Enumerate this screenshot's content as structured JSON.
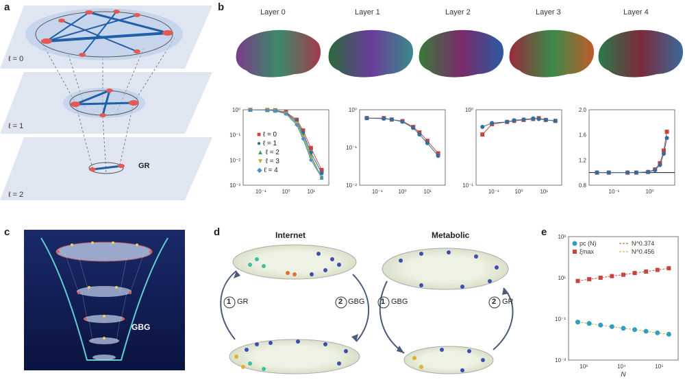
{
  "panel_labels": {
    "a": "a",
    "b": "b",
    "c": "c",
    "d": "d",
    "e": "e"
  },
  "panel_a": {
    "layers": [
      "ℓ = 0",
      "ℓ = 1",
      "ℓ = 2"
    ],
    "gr_label": "GR"
  },
  "panel_b": {
    "brain_layers": [
      "Layer 0",
      "Layer 1",
      "Layer 2",
      "Layer 3",
      "Layer 4"
    ],
    "legend": [
      "ℓ = 0",
      "ℓ = 1",
      "ℓ = 2",
      "ℓ = 3",
      "ℓ = 4"
    ],
    "series_colors": [
      "#c8453f",
      "#2f6e9e",
      "#3f9e5a",
      "#c9a43a",
      "#4f8fd0"
    ]
  },
  "panel_c": {
    "label": "GBG"
  },
  "panel_d": {
    "internet_title": "Internet",
    "metabolic_title": "Metabolic",
    "step1_left": "GR",
    "step2_left": "GBG",
    "step1_right": "GBG",
    "step2_right": "GR",
    "num1": "1",
    "num2": "2"
  },
  "chart_data": [
    {
      "type": "line",
      "panel": "b1",
      "x": [
        0.1,
        0.3,
        0.5,
        1,
        2,
        3,
        5,
        10
      ],
      "series": [
        {
          "name": "ℓ = 0",
          "values": [
            1,
            0.98,
            0.95,
            0.8,
            0.4,
            0.15,
            0.03,
            0.004
          ]
        },
        {
          "name": "ℓ = 1",
          "values": [
            1,
            0.97,
            0.93,
            0.75,
            0.35,
            0.12,
            0.02,
            0.003
          ]
        },
        {
          "name": "ℓ = 2",
          "values": [
            1,
            0.97,
            0.92,
            0.72,
            0.3,
            0.1,
            0.015,
            0.002
          ]
        },
        {
          "name": "ℓ = 3",
          "values": [
            1,
            0.96,
            0.9,
            0.7,
            0.28,
            0.08,
            0.012,
            0.002
          ]
        },
        {
          "name": "ℓ = 4",
          "values": [
            1,
            0.96,
            0.9,
            0.68,
            0.25,
            0.07,
            0.01,
            0.002
          ]
        }
      ],
      "ytick_labels": [
        "10⁰",
        "10⁻¹",
        "10⁻²",
        "10⁻³"
      ],
      "xtick_labels": [
        "10⁻¹",
        "10⁰",
        "10¹"
      ],
      "xlog": true,
      "ylog": true
    },
    {
      "type": "line",
      "panel": "b2",
      "x": [
        0.1,
        0.3,
        0.5,
        1,
        2,
        3,
        5,
        10
      ],
      "series": [
        {
          "name": "ℓ = 0",
          "values": [
            0.6,
            0.6,
            0.55,
            0.5,
            0.35,
            0.25,
            0.15,
            0.07
          ]
        },
        {
          "name": "ℓ = 1",
          "values": [
            0.6,
            0.58,
            0.55,
            0.48,
            0.33,
            0.22,
            0.13,
            0.06
          ]
        }
      ],
      "ytick_labels": [
        "10⁰",
        "10⁻¹",
        "10⁻²"
      ],
      "xtick_labels": [
        "10⁻¹",
        "10⁰",
        "10¹"
      ],
      "xlog": true,
      "ylog": true
    },
    {
      "type": "line",
      "panel": "b3",
      "x": [
        0.05,
        0.1,
        0.3,
        0.5,
        1,
        2,
        3,
        5,
        10
      ],
      "series": [
        {
          "name": "ℓ = 0",
          "values": [
            0.3,
            0.6,
            0.7,
            0.75,
            0.8,
            0.85,
            0.9,
            0.8,
            0.75
          ]
        },
        {
          "name": "ℓ = 1",
          "values": [
            0.5,
            0.65,
            0.7,
            0.78,
            0.82,
            0.88,
            0.85,
            0.8,
            0.75
          ]
        }
      ],
      "ytick_labels": [
        "10⁰",
        "10⁻¹"
      ],
      "xtick_labels": [
        "10⁻¹",
        "10⁰",
        "10¹"
      ],
      "xlog": true,
      "ylog": true
    },
    {
      "type": "line",
      "panel": "b4",
      "x": [
        0.05,
        0.1,
        0.3,
        0.5,
        1,
        1.5,
        2,
        2.5,
        3
      ],
      "series": [
        {
          "name": "ℓ = 0",
          "values": [
            1,
            1,
            1,
            1,
            1.01,
            1.05,
            1.15,
            1.35,
            1.65
          ]
        },
        {
          "name": "ℓ = 1",
          "values": [
            1,
            1,
            1,
            1,
            1.01,
            1.04,
            1.12,
            1.3,
            1.55
          ]
        }
      ],
      "ytick_labels": [
        "2.0",
        "1.6",
        "1.2",
        "0.8"
      ],
      "xtick_labels": [
        "10⁻¹",
        "10⁰"
      ],
      "ylim": [
        0.8,
        2.0
      ]
    },
    {
      "type": "scatter",
      "panel": "e",
      "x": [
        700,
        1400,
        2800,
        5600,
        11200,
        22400,
        44800,
        89600,
        179200
      ],
      "series": [
        {
          "name": "ξmax",
          "values": [
            7,
            8.5,
            10,
            12,
            14,
            17,
            20,
            24,
            29
          ]
        },
        {
          "name": "pc (N)",
          "values": [
            0.07,
            0.06,
            0.05,
            0.042,
            0.035,
            0.03,
            0.025,
            0.021,
            0.018
          ]
        }
      ],
      "fit_labels": [
        "N^0.374",
        "N^0.456"
      ],
      "ytick_labels": [
        "10³",
        "10¹",
        "10⁻¹",
        "10⁻³"
      ],
      "xtick_labels": [
        "10³",
        "10⁴",
        "10⁵"
      ],
      "xlabel": "N",
      "xlog": true,
      "ylog": true
    }
  ]
}
